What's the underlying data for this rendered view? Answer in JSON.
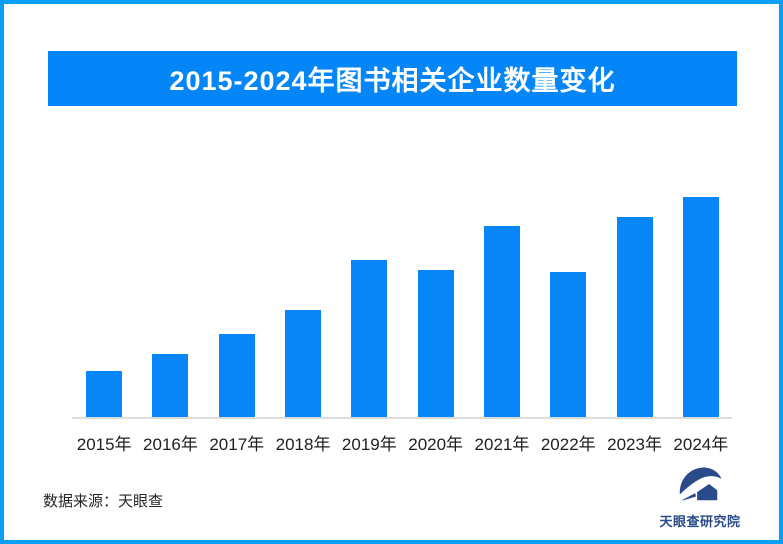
{
  "frame": {
    "border_color": "#0a9ff7",
    "background_color": "#ffffff"
  },
  "header": {
    "title": "2015-2024年图书相关企业数量变化",
    "banner_color": "#0486f8",
    "title_color": "#ffffff"
  },
  "chart_data": {
    "type": "bar",
    "title": "2015-2024年图书相关企业数量变化",
    "categories": [
      "2015年",
      "2016年",
      "2017年",
      "2018年",
      "2019年",
      "2020年",
      "2021年",
      "2022年",
      "2023年",
      "2024年"
    ],
    "values": [
      21.3,
      29.0,
      38.0,
      48.9,
      71.5,
      67.0,
      86.9,
      66.1,
      91.0,
      100.0
    ],
    "values_estimated": true,
    "xlabel": "",
    "ylabel": "",
    "ylim": [
      0,
      100
    ],
    "grid": false,
    "legend": false,
    "value_axis_visible": false,
    "bar_color": "#0886f8",
    "axis_line_color": "#dcdcdc",
    "tick_label_color": "#1f1f1f"
  },
  "footer": {
    "source_label": "数据来源：天眼查",
    "logo_text": "天眼查研究院",
    "logo_color": "#2a4b8a"
  }
}
